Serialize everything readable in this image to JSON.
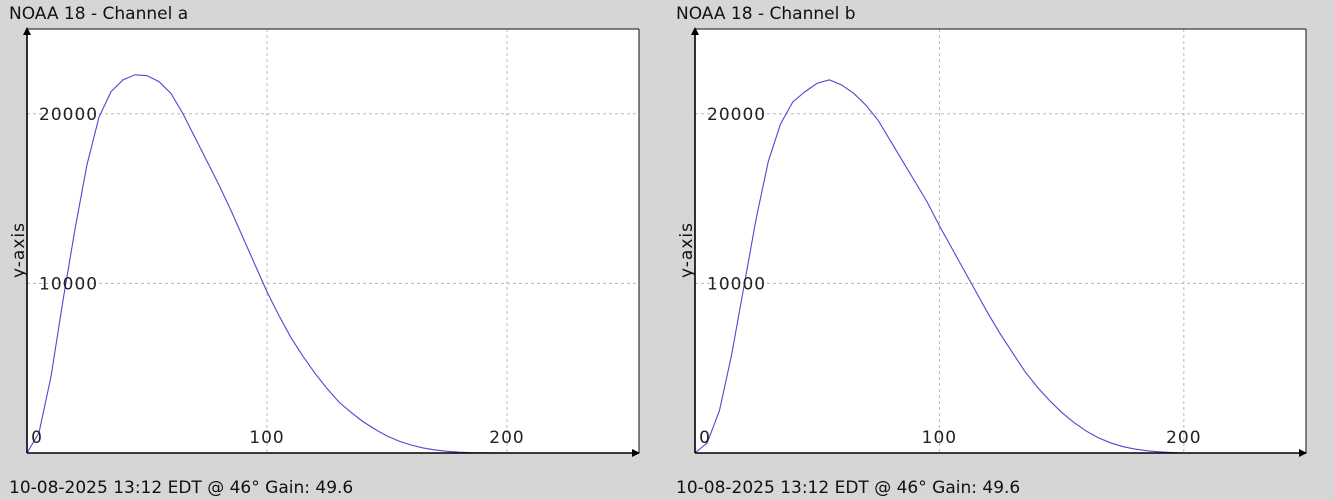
{
  "panels": [
    {
      "title": "NOAA 18 - Channel a",
      "caption": "10-08-2025 13:12 EDT @ 46° Gain: 49.6",
      "ylabel": "y-axis"
    },
    {
      "title": "NOAA 18 - Channel b",
      "caption": "10-08-2025 13:12 EDT @ 46° Gain: 49.6",
      "ylabel": "y-axis"
    }
  ],
  "colors": {
    "background": "#d6d6d6",
    "plot_background": "#ffffff",
    "series": "#4a4ad2",
    "grid": "#b8b8b8",
    "axis": "#000000"
  },
  "chart_data": [
    {
      "type": "line",
      "title": "NOAA 18 - Channel a",
      "xlabel": "",
      "ylabel": "y-axis",
      "xlim": [
        0,
        255
      ],
      "ylim": [
        0,
        25000
      ],
      "x_ticks": [
        0,
        100,
        200
      ],
      "y_ticks": [
        10000,
        20000
      ],
      "grid": true,
      "legend": "none",
      "series": [
        {
          "color": "#4a4ad2",
          "x": [
            0,
            5,
            10,
            15,
            20,
            25,
            30,
            35,
            40,
            45,
            50,
            55,
            60,
            65,
            70,
            75,
            80,
            85,
            90,
            95,
            100,
            105,
            110,
            115,
            120,
            125,
            130,
            135,
            140,
            145,
            150,
            155,
            160,
            165,
            170,
            175,
            180,
            185,
            190,
            195,
            200
          ],
          "y": [
            0,
            1200,
            4500,
            9000,
            13200,
            17000,
            19800,
            21300,
            22000,
            22300,
            22250,
            21900,
            21200,
            20000,
            18600,
            17200,
            15800,
            14300,
            12700,
            11100,
            9500,
            8100,
            6800,
            5700,
            4700,
            3800,
            3000,
            2400,
            1850,
            1400,
            1000,
            700,
            470,
            300,
            180,
            100,
            50,
            20,
            10,
            5,
            0
          ]
        }
      ]
    },
    {
      "type": "line",
      "title": "NOAA 18 - Channel b",
      "xlabel": "",
      "ylabel": "y-axis",
      "xlim": [
        0,
        250
      ],
      "ylim": [
        0,
        25000
      ],
      "x_ticks": [
        0,
        100,
        200
      ],
      "y_ticks": [
        10000,
        20000
      ],
      "grid": true,
      "legend": "none",
      "series": [
        {
          "color": "#4a4ad2",
          "x": [
            0,
            5,
            10,
            15,
            20,
            25,
            30,
            35,
            40,
            45,
            50,
            55,
            60,
            65,
            70,
            75,
            80,
            85,
            90,
            95,
            100,
            105,
            110,
            115,
            120,
            125,
            130,
            135,
            140,
            145,
            150,
            155,
            160,
            165,
            170,
            175,
            180,
            185,
            190,
            195,
            200
          ],
          "y": [
            0,
            600,
            2500,
            5800,
            9800,
            13800,
            17200,
            19400,
            20700,
            21300,
            21800,
            22000,
            21700,
            21200,
            20500,
            19600,
            18400,
            17200,
            16000,
            14800,
            13400,
            12100,
            10800,
            9500,
            8200,
            7000,
            5900,
            4800,
            3900,
            3100,
            2400,
            1800,
            1300,
            900,
            600,
            380,
            230,
            130,
            70,
            30,
            0
          ]
        }
      ]
    }
  ]
}
